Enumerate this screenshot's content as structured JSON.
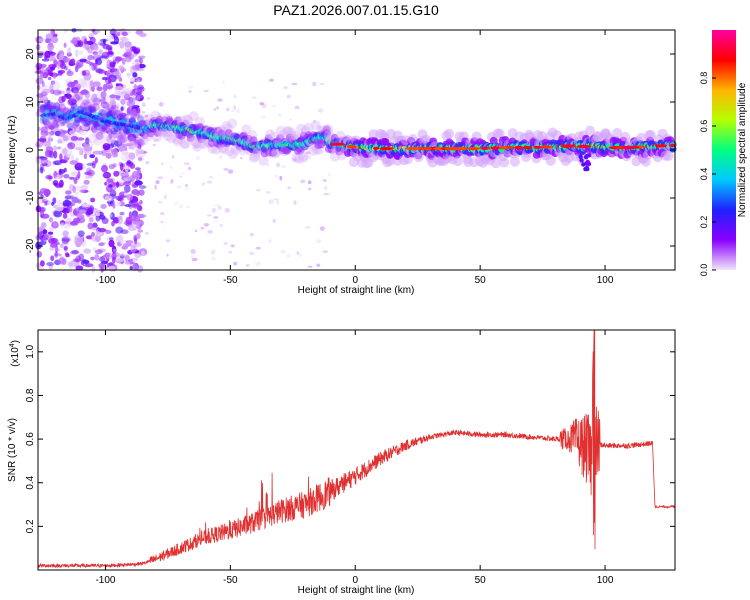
{
  "figure_title": "PAZ1.2026.007.01.15.G10",
  "colors": {
    "snr_line": "#e03030",
    "axis": "#000000",
    "colormap": [
      "#f0e6fa",
      "#8a00ff",
      "#2020ff",
      "#00c8ff",
      "#00ff80",
      "#b4ff00",
      "#ffb400",
      "#ff0000",
      "#ff00a0"
    ]
  },
  "chart_data": [
    {
      "type": "heatmap",
      "title": "PAZ1.2026.007.01.15.G10",
      "xlabel": "Height of straight line (km)",
      "ylabel": "Frequency (Hz)",
      "xlim": [
        -127,
        128
      ],
      "ylim": [
        -25,
        25
      ],
      "x_ticks": [
        -100,
        -50,
        0,
        50,
        100
      ],
      "y_ticks": [
        -20,
        -10,
        0,
        10,
        20
      ],
      "x_tick_labels": [
        "-100",
        "-50",
        "0",
        "50",
        "100"
      ],
      "y_tick_labels": [
        "-20",
        "-10",
        "0",
        "10",
        "20"
      ],
      "colorbar": {
        "label": "Normalized spectral amplitude",
        "range": [
          0,
          1
        ],
        "ticks": [
          0.0,
          0.2,
          0.4,
          0.6,
          0.8
        ],
        "tick_labels": [
          "0.0",
          "0.2",
          "0.4",
          "0.6",
          "0.8"
        ]
      },
      "main_track": {
        "x": [
          -127,
          -120,
          -115,
          -110,
          -100,
          -90,
          -85,
          -80,
          -75,
          -70,
          -65,
          -60,
          -55,
          -50,
          -45,
          -40,
          -35,
          -30,
          -25,
          -20,
          -15,
          -12,
          -10,
          -5,
          0,
          10,
          20,
          30,
          40,
          50,
          60,
          70,
          80,
          88,
          90,
          92,
          95,
          100,
          110,
          120,
          128
        ],
        "y": [
          7,
          7.5,
          6.5,
          8,
          6,
          5,
          4.5,
          5,
          5,
          4.5,
          4,
          3.5,
          2.5,
          2.5,
          1.5,
          0.5,
          1,
          1,
          1,
          1.5,
          2.5,
          3,
          1.5,
          1,
          0.5,
          0.3,
          0.3,
          0.3,
          0.3,
          0.3,
          0.5,
          0.5,
          0.7,
          0.9,
          0.5,
          0.8,
          1,
          0.5,
          0.5,
          0.8,
          1
        ]
      }
    },
    {
      "type": "line",
      "xlabel": "Height of straight line (km)",
      "ylabel": "SNR (10 * v/v)",
      "y_scale_label": "(x10",
      "y_scale_exponent": "4",
      "xlim": [
        -127,
        128
      ],
      "ylim": [
        0,
        1.1
      ],
      "x_ticks": [
        -100,
        -50,
        0,
        50,
        100
      ],
      "y_ticks": [
        0.2,
        0.4,
        0.6,
        0.8,
        1.0
      ],
      "x_tick_labels": [
        "-100",
        "-50",
        "0",
        "50",
        "100"
      ],
      "y_tick_labels": [
        "0.2",
        "0.4",
        "0.6",
        "0.8",
        "1.0"
      ],
      "series": [
        {
          "name": "SNR",
          "x": [
            -127,
            -100,
            -90,
            -85,
            -80,
            -70,
            -60,
            -50,
            -40,
            -30,
            -20,
            -10,
            0,
            10,
            20,
            30,
            40,
            50,
            60,
            70,
            80,
            85,
            88,
            90,
            93,
            95,
            96,
            100,
            110,
            118,
            119,
            120,
            125,
            128
          ],
          "y": [
            0.02,
            0.02,
            0.025,
            0.03,
            0.05,
            0.1,
            0.15,
            0.18,
            0.22,
            0.27,
            0.3,
            0.36,
            0.43,
            0.51,
            0.57,
            0.61,
            0.63,
            0.62,
            0.62,
            0.61,
            0.6,
            0.6,
            0.6,
            0.58,
            0.55,
            0.5,
            0.58,
            0.57,
            0.57,
            0.58,
            0.58,
            0.29,
            0.29,
            0.29
          ]
        }
      ]
    }
  ]
}
